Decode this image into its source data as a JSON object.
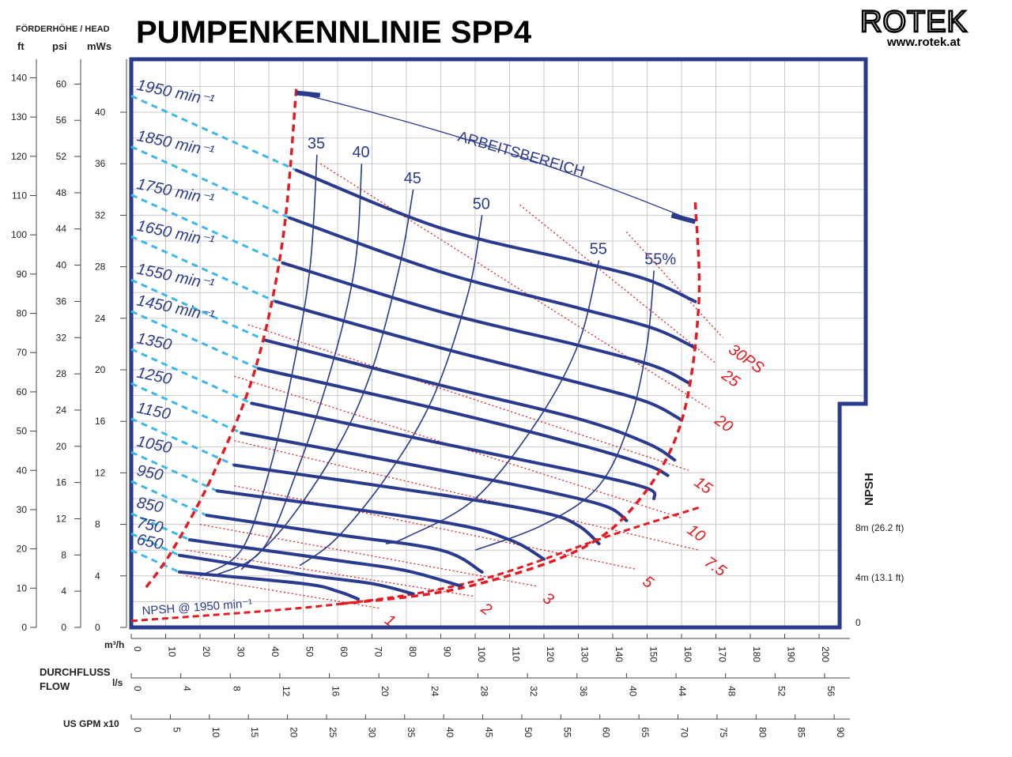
{
  "header": {
    "title": "PUMPENKENNLINIE SPP4",
    "brand": "ROTEK",
    "website": "www.rotek.at",
    "head_label": "FÖRDERHÖHE / HEAD",
    "unit_ft": "ft",
    "unit_psi": "psi",
    "unit_mws": "mWs"
  },
  "axes": {
    "flow_label_1": "DURCHFLUSS",
    "flow_label_2": "FLOW",
    "unit_m3h": "m³/h",
    "unit_ls": "l/s",
    "unit_gpm": "US GPM x10",
    "npsh_title": "NPSH",
    "npsh_ticks": [
      "8m (26.2 ft)",
      "4m (13.1 ft)",
      "0"
    ],
    "m3h_ticks": [
      0,
      10,
      20,
      30,
      40,
      50,
      60,
      70,
      80,
      90,
      100,
      110,
      120,
      130,
      140,
      150,
      160,
      170,
      180,
      190,
      200
    ],
    "ls_ticks": [
      0,
      4,
      8,
      12,
      16,
      20,
      24,
      28,
      32,
      36,
      40,
      44,
      48,
      52,
      56
    ],
    "gpm_ticks": [
      0,
      5,
      10,
      15,
      20,
      25,
      30,
      35,
      40,
      45,
      50,
      55,
      60,
      65,
      70,
      75,
      80,
      85,
      90
    ],
    "mws_ticks": [
      0,
      4,
      8,
      12,
      16,
      20,
      24,
      28,
      32,
      36,
      40
    ],
    "ft_ticks": [
      0,
      10,
      20,
      30,
      40,
      50,
      60,
      70,
      80,
      90,
      100,
      110,
      120,
      130,
      140
    ],
    "psi_ticks": [
      0,
      4,
      8,
      12,
      16,
      20,
      24,
      28,
      32,
      36,
      40,
      44,
      48,
      52,
      56,
      60
    ]
  },
  "colors": {
    "curve_blue": "#2a3a8c",
    "dash_cyan": "#3fb6e8",
    "limit_red": "#e31b23",
    "frame_blue": "#2a3a8c"
  },
  "labels": {
    "arbeitsbereich": "ARBEITSBEREICH",
    "npsh_curve": "NPSH @ 1950 min⁻¹"
  },
  "chart_data": {
    "type": "line",
    "title": "PUMPENKENNLINIE SPP4",
    "xlabel": "m³/h",
    "ylabel": "mWs",
    "xlim": [
      0,
      205
    ],
    "ylim": [
      0,
      45
    ],
    "grid": true,
    "speed_curves": [
      {
        "name": "1950 min⁻¹",
        "points": [
          [
            48,
            35.5
          ],
          [
            90,
            31
          ],
          [
            130,
            28.4
          ],
          [
            150,
            27
          ],
          [
            164,
            25.3
          ]
        ]
      },
      {
        "name": "1850 min⁻¹",
        "points": [
          [
            46,
            31.8
          ],
          [
            90,
            27.6
          ],
          [
            130,
            24.8
          ],
          [
            152,
            23.2
          ],
          [
            164,
            21.7
          ]
        ]
      },
      {
        "name": "1750 min⁻¹",
        "points": [
          [
            44,
            28.3
          ],
          [
            90,
            24.5
          ],
          [
            130,
            21.9
          ],
          [
            152,
            20.3
          ],
          [
            162,
            19
          ]
        ]
      },
      {
        "name": "1650 min⁻¹",
        "points": [
          [
            42,
            25.3
          ],
          [
            90,
            21.7
          ],
          [
            130,
            19
          ],
          [
            150,
            17.5
          ],
          [
            160,
            16.1
          ]
        ]
      },
      {
        "name": "1550 min⁻¹",
        "points": [
          [
            39,
            22.3
          ],
          [
            90,
            18.8
          ],
          [
            130,
            16.2
          ],
          [
            150,
            14.3
          ],
          [
            158,
            13
          ]
        ]
      },
      {
        "name": "1450 min⁻¹",
        "points": [
          [
            37,
            20.1
          ],
          [
            90,
            16.9
          ],
          [
            130,
            14.2
          ],
          [
            150,
            12.6
          ],
          [
            156,
            11.8
          ]
        ]
      },
      {
        "name": "1350",
        "points": [
          [
            35,
            17.4
          ],
          [
            90,
            14.3
          ],
          [
            130,
            12.1
          ],
          [
            150,
            10.8
          ],
          [
            152,
            10
          ]
        ]
      },
      {
        "name": "1250",
        "points": [
          [
            32,
            15.1
          ],
          [
            90,
            12.2
          ],
          [
            120,
            10.6
          ],
          [
            138,
            9.4
          ],
          [
            144,
            8.3
          ]
        ]
      },
      {
        "name": "1150",
        "points": [
          [
            30,
            12.6
          ],
          [
            90,
            10.3
          ],
          [
            120,
            8.9
          ],
          [
            130,
            7.9
          ],
          [
            136,
            6.5
          ]
        ]
      },
      {
        "name": "1050",
        "points": [
          [
            25,
            10.6
          ],
          [
            90,
            8.2
          ],
          [
            110,
            6.8
          ],
          [
            120,
            5.3
          ]
        ]
      },
      {
        "name": "950",
        "points": [
          [
            22,
            8.7
          ],
          [
            60,
            7.2
          ],
          [
            90,
            6
          ],
          [
            102,
            4.3
          ]
        ]
      },
      {
        "name": "850",
        "points": [
          [
            17,
            6.8
          ],
          [
            60,
            5.2
          ],
          [
            80,
            4.4
          ],
          [
            96,
            3.2
          ]
        ]
      },
      {
        "name": "750",
        "points": [
          [
            14,
            5.6
          ],
          [
            50,
            4.1
          ],
          [
            70,
            3.4
          ],
          [
            82,
            2.6
          ]
        ]
      },
      {
        "name": "650",
        "points": [
          [
            14,
            4.3
          ],
          [
            50,
            3.4
          ],
          [
            60,
            2.8
          ],
          [
            66,
            2.2
          ]
        ]
      }
    ],
    "efficiency_curves": [
      {
        "name": "35",
        "points": [
          [
            54,
            36.7
          ],
          [
            52,
            28
          ],
          [
            47,
            20
          ],
          [
            40,
            12
          ],
          [
            32,
            6
          ],
          [
            20,
            4
          ]
        ]
      },
      {
        "name": "40",
        "points": [
          [
            67,
            36
          ],
          [
            65,
            28
          ],
          [
            58,
            20
          ],
          [
            48,
            12
          ],
          [
            38,
            6
          ],
          [
            24,
            4
          ]
        ]
      },
      {
        "name": "45",
        "points": [
          [
            82,
            34
          ],
          [
            78,
            28
          ],
          [
            70,
            20
          ],
          [
            60,
            14
          ],
          [
            45,
            8
          ],
          [
            32,
            4.5
          ]
        ]
      },
      {
        "name": "50",
        "points": [
          [
            102,
            32
          ],
          [
            98,
            26
          ],
          [
            88,
            18
          ],
          [
            75,
            12
          ],
          [
            60,
            7
          ],
          [
            49,
            4.8
          ]
        ]
      },
      {
        "name": "55",
        "points": [
          [
            136,
            28.5
          ],
          [
            130,
            22
          ],
          [
            118,
            16
          ],
          [
            100,
            10
          ],
          [
            80,
            7
          ],
          [
            74,
            6.5
          ]
        ]
      },
      {
        "name": "55%",
        "points": [
          [
            152,
            27.7
          ],
          [
            150,
            22
          ],
          [
            145,
            16
          ],
          [
            136,
            11
          ],
          [
            120,
            8
          ],
          [
            100,
            6
          ]
        ]
      }
    ],
    "power_lines": [
      {
        "name": "30PS",
        "points": [
          [
            144,
            30.7
          ],
          [
            172,
            22.5
          ]
        ]
      },
      {
        "name": "25",
        "points": [
          [
            113,
            32.8
          ],
          [
            170,
            20.5
          ]
        ]
      },
      {
        "name": "20",
        "points": [
          [
            55,
            36
          ],
          [
            168,
            17
          ]
        ]
      },
      {
        "name": "15",
        "points": [
          [
            34,
            23.5
          ],
          [
            162,
            12.2
          ]
        ]
      },
      {
        "name": "10",
        "points": [
          [
            30,
            19.5
          ],
          [
            160,
            8.5
          ]
        ]
      },
      {
        "name": "7.5",
        "points": [
          [
            30,
            14.5
          ],
          [
            165,
            6
          ]
        ]
      },
      {
        "name": "5",
        "points": [
          [
            30,
            11
          ],
          [
            147,
            4.5
          ]
        ]
      },
      {
        "name": "3",
        "points": [
          [
            20,
            8
          ],
          [
            118,
            3.2
          ]
        ]
      },
      {
        "name": "2",
        "points": [
          [
            16,
            6
          ],
          [
            100,
            2.4
          ]
        ]
      },
      {
        "name": "1",
        "points": [
          [
            16,
            4
          ],
          [
            72,
            1.5
          ]
        ]
      }
    ],
    "arbeitsbereich": {
      "from": [
        48,
        41.5
      ],
      "to": [
        164,
        31.5
      ]
    },
    "npsh_1950": {
      "points": [
        [
          0,
          0.5
        ],
        [
          60,
          1.8
        ],
        [
          100,
          3.6
        ],
        [
          140,
          7.2
        ],
        [
          165,
          9.3
        ]
      ],
      "unit": "m"
    }
  }
}
